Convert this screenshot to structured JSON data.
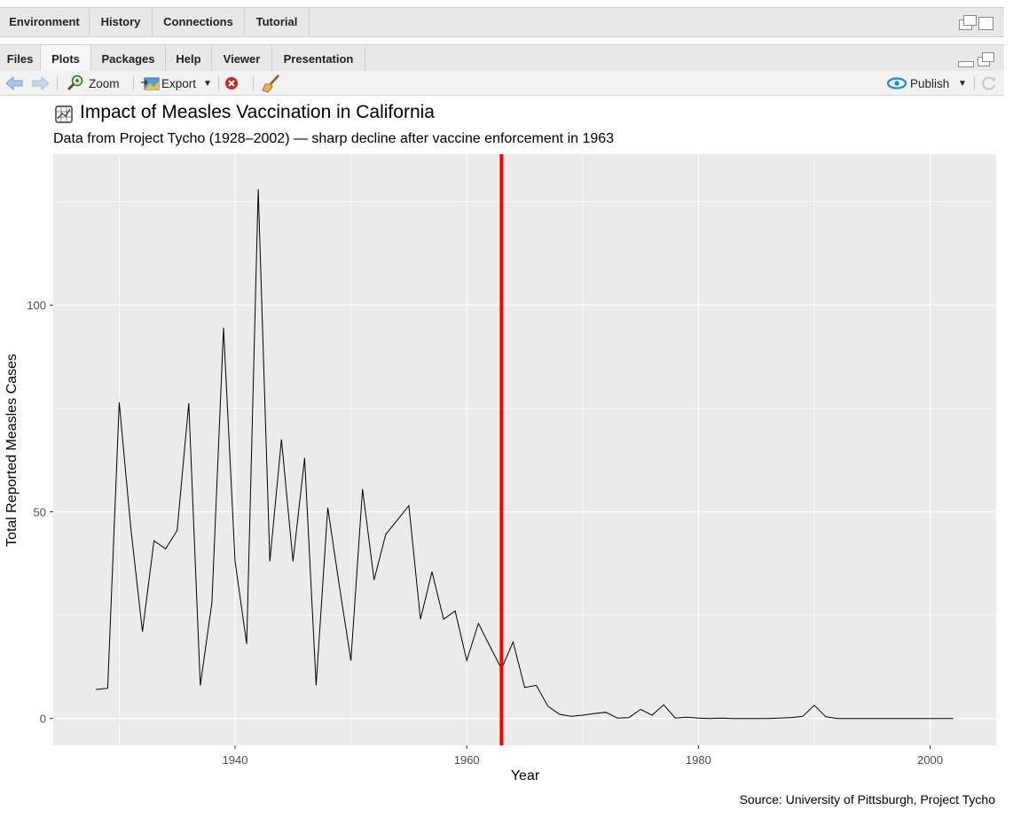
{
  "top_pane": {
    "tabs": [
      {
        "label": "Environment"
      },
      {
        "label": "History"
      },
      {
        "label": "Connections"
      },
      {
        "label": "Tutorial"
      }
    ]
  },
  "bottom_pane": {
    "tabs": [
      {
        "label": "Files"
      },
      {
        "label": "Plots",
        "active": true
      },
      {
        "label": "Packages"
      },
      {
        "label": "Help"
      },
      {
        "label": "Viewer"
      },
      {
        "label": "Presentation"
      }
    ]
  },
  "toolbar": {
    "zoom_label": "Zoom",
    "export_label": "Export",
    "publish_label": "Publish",
    "icons": [
      "back-arrow-icon",
      "forward-arrow-icon",
      "zoom-icon",
      "export-icon",
      "clear-plot-icon",
      "broom-icon",
      "publish-icon",
      "refresh-icon"
    ]
  },
  "plot": {
    "title": "Impact of Measles Vaccination in California",
    "subtitle": "Data from Project Tycho (1928–2002) — sharp decline after vaccine enforcement in 1963",
    "caption": "Source: University of Pittsburgh, Project Tycho",
    "xlabel": "Year",
    "ylabel": "Total Reported Measles Cases"
  },
  "colors": {
    "panel_bg": "#ebebeb",
    "grid": "#ffffff",
    "line": "#000000",
    "vline": "#ff0000",
    "blue_icon": "#1a8fd0"
  },
  "chart_data": {
    "type": "line",
    "title": "Impact of Measles Vaccination in California",
    "subtitle": "Data from Project Tycho (1928–2002) — sharp decline after vaccine enforcement in 1963",
    "xlabel": "Year",
    "ylabel": "Total Reported Measles Cases",
    "xlim": [
      1924.3,
      2005.7
    ],
    "ylim": [
      -6.5,
      136.5
    ],
    "x_ticks": [
      1940,
      1960,
      1980,
      2000
    ],
    "x_tick_labels": [
      "1940",
      "1960",
      "1980",
      "2000"
    ],
    "y_ticks": [
      0,
      50,
      100
    ],
    "y_tick_labels": [
      "0",
      "50",
      "100"
    ],
    "grid": true,
    "vline": {
      "x": 1963,
      "color": "#ff0000"
    },
    "series": [
      {
        "x": [
          1928,
          1929,
          1930,
          1931,
          1932,
          1933,
          1934,
          1935,
          1936,
          1937,
          1938,
          1939,
          1940,
          1941,
          1942,
          1943,
          1944,
          1945,
          1946,
          1947,
          1948,
          1949,
          1950,
          1951,
          1952,
          1953,
          1954,
          1955,
          1956,
          1957,
          1958,
          1959,
          1960,
          1961,
          1962,
          1963,
          1964,
          1965,
          1966,
          1967,
          1968,
          1969,
          1970,
          1971,
          1972,
          1973,
          1974,
          1975,
          1976,
          1977,
          1978,
          1979,
          1980,
          1981,
          1982,
          1983,
          1984,
          1985,
          1986,
          1987,
          1988,
          1989,
          1990,
          1991,
          1992,
          1993,
          1994,
          1995,
          1996,
          1997,
          1998,
          1999,
          2000,
          2001,
          2002
        ],
        "y": [
          7,
          7.3,
          76.5,
          46,
          21,
          43,
          41,
          45.5,
          76.3,
          8,
          28,
          94.5,
          38,
          18,
          128,
          38,
          67.5,
          38,
          63,
          8,
          51,
          32,
          14,
          55.5,
          33.5,
          44.5,
          48,
          51.5,
          24,
          35.5,
          24,
          26,
          14,
          23,
          17.5,
          12,
          18.5,
          7.5,
          8,
          3,
          1,
          0.5,
          0.8,
          1.2,
          1.5,
          0.1,
          0.2,
          2.2,
          0.8,
          3.3,
          0.1,
          0.3,
          0.1,
          0,
          0.1,
          0,
          0,
          0,
          0,
          0.1,
          0.2,
          0.5,
          3.2,
          0.4,
          0,
          0,
          0,
          0,
          0,
          0,
          0,
          0,
          0,
          0,
          0
        ]
      }
    ]
  }
}
